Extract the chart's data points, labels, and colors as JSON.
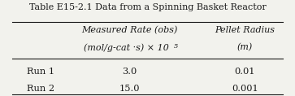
{
  "title": "Table E15-2.1 Data from a Spinning Basket Reactor",
  "col_headers_1": [
    "Measured Rate (obs)",
    "(mol/g-cat ·s) × 10"
  ],
  "col_headers_2": [
    "Pellet Radius",
    "(m)"
  ],
  "row_labels": [
    "Run 1",
    "Run 2"
  ],
  "col1_values": [
    "3.0",
    "15.0"
  ],
  "col2_values": [
    "0.01",
    "0.001"
  ],
  "bg_color": "#f2f2ed",
  "text_color": "#1a1a1a",
  "title_fontsize": 8.0,
  "header_fontsize": 8.0,
  "data_fontsize": 8.2
}
